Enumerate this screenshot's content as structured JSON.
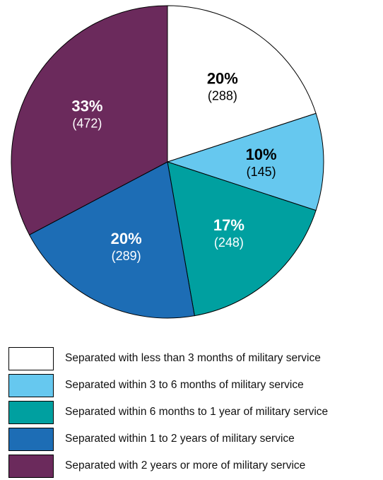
{
  "chart_data": {
    "type": "pie",
    "start_angle_deg": 0,
    "direction": "clockwise",
    "slices": [
      {
        "percent_label": "20%",
        "count_label": "(288)",
        "value": 288,
        "color": "#ffffff",
        "text_color": "#000000",
        "legend": "Separated with less than 3 months of military service"
      },
      {
        "percent_label": "10%",
        "count_label": "(145)",
        "value": 145,
        "color": "#66c8ef",
        "text_color": "#000000",
        "legend": "Separated within 3 to 6 months of military service"
      },
      {
        "percent_label": "17%",
        "count_label": "(248)",
        "value": 248,
        "color": "#00a0a0",
        "text_color": "#ffffff",
        "legend": "Separated within 6 months to 1 year of military service"
      },
      {
        "percent_label": "20%",
        "count_label": "(289)",
        "value": 289,
        "color": "#1d6db5",
        "text_color": "#ffffff",
        "legend": "Separated within 1 to 2 years of military service"
      },
      {
        "percent_label": "33%",
        "count_label": "(472)",
        "value": 472,
        "color": "#6b2a5c",
        "text_color": "#ffffff",
        "legend": "Separated with 2 years or more of military service"
      }
    ],
    "legend_placement": "bottom"
  }
}
